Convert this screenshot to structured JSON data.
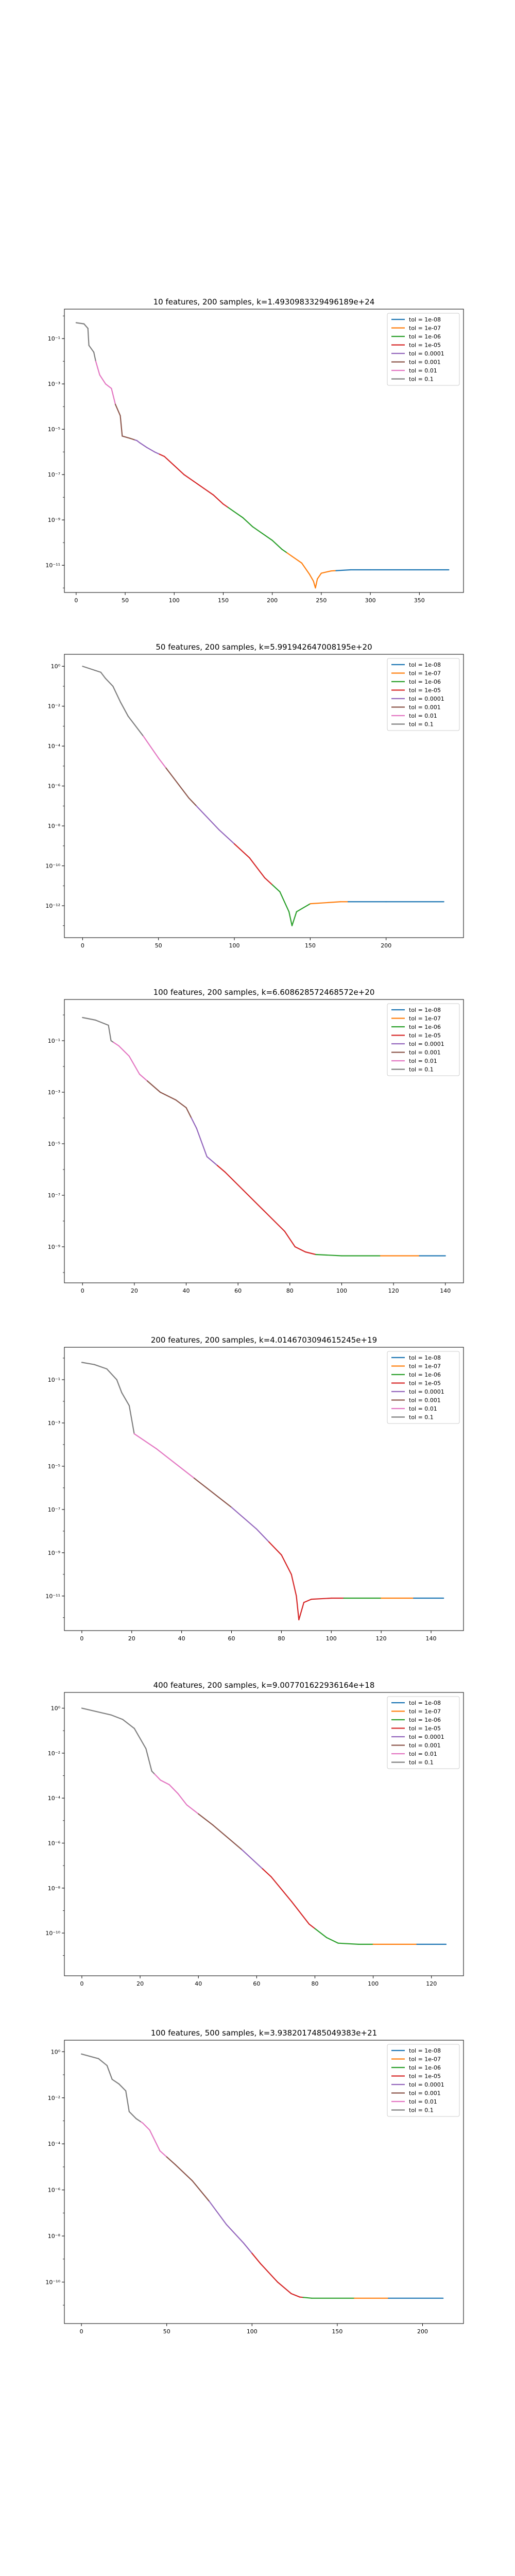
{
  "figure": {
    "series_names": [
      "tol = 1e-08",
      "tol = 1e-07",
      "tol = 1e-06",
      "tol = 1e-05",
      "tol = 0.0001",
      "tol = 0.001",
      "tol = 0.01",
      "tol = 0.1"
    ],
    "series_colors": [
      "#1f77b4",
      "#ff7f0e",
      "#2ca02c",
      "#d62728",
      "#9467bd",
      "#8c564b",
      "#e377c2",
      "#7f7f7f"
    ],
    "legend_position": "top-right",
    "yscale": "log"
  },
  "chart_data": [
    {
      "type": "line",
      "title": "10 features, 200 samples, k=1.4930983329496189e+24",
      "xlim": [
        -12,
        395
      ],
      "xticks": [
        0,
        50,
        100,
        150,
        200,
        250,
        300,
        350
      ],
      "ylog": [
        -12.2,
        0.3
      ],
      "yticks": [
        -1,
        -3,
        -5,
        -7,
        -9,
        -11
      ],
      "curve": [
        [
          0,
          -0.3
        ],
        [
          8,
          -0.35
        ],
        [
          12,
          -0.55
        ],
        [
          13,
          -1.3
        ],
        [
          18,
          -1.6
        ],
        [
          20,
          -2.0
        ],
        [
          22,
          -2.3
        ],
        [
          24,
          -2.6
        ],
        [
          30,
          -3.0
        ],
        [
          36,
          -3.2
        ],
        [
          40,
          -3.9
        ],
        [
          45,
          -4.4
        ],
        [
          47,
          -5.3
        ],
        [
          55,
          -5.4
        ],
        [
          62,
          -5.5
        ],
        [
          65,
          -5.6
        ],
        [
          72,
          -5.8
        ],
        [
          80,
          -6.0
        ],
        [
          90,
          -6.2
        ],
        [
          100,
          -6.6
        ],
        [
          110,
          -7.0
        ],
        [
          120,
          -7.3
        ],
        [
          130,
          -7.6
        ],
        [
          140,
          -7.9
        ],
        [
          150,
          -8.3
        ],
        [
          160,
          -8.6
        ],
        [
          170,
          -8.9
        ],
        [
          180,
          -9.3
        ],
        [
          190,
          -9.6
        ],
        [
          200,
          -9.9
        ],
        [
          210,
          -10.3
        ],
        [
          220,
          -10.6
        ],
        [
          230,
          -10.9
        ],
        [
          238,
          -11.4
        ],
        [
          242,
          -11.7
        ],
        [
          244,
          -12.0
        ],
        [
          246,
          -11.6
        ],
        [
          250,
          -11.35
        ],
        [
          260,
          -11.25
        ],
        [
          280,
          -11.2
        ],
        [
          300,
          -11.2
        ],
        [
          340,
          -11.2
        ],
        [
          380,
          -11.2
        ]
      ],
      "color_breaks": [
        [
          0,
          7
        ],
        [
          20,
          6
        ],
        [
          40,
          5
        ],
        [
          60,
          4
        ],
        [
          85,
          3
        ],
        [
          155,
          2
        ],
        [
          215,
          1
        ],
        [
          265,
          0
        ]
      ]
    },
    {
      "type": "line",
      "title": "50 features, 200 samples, k=5.991942647008195e+20",
      "xlim": [
        -12,
        251
      ],
      "xticks": [
        0,
        50,
        100,
        150,
        200
      ],
      "ylog": [
        -13.6,
        0.6
      ],
      "yticks": [
        0,
        -2,
        -4,
        -6,
        -8,
        -10,
        -12
      ],
      "curve": [
        [
          0,
          0.0
        ],
        [
          8,
          -0.2
        ],
        [
          12,
          -0.3
        ],
        [
          15,
          -0.6
        ],
        [
          20,
          -1.0
        ],
        [
          25,
          -1.8
        ],
        [
          30,
          -2.5
        ],
        [
          40,
          -3.5
        ],
        [
          50,
          -4.6
        ],
        [
          60,
          -5.6
        ],
        [
          70,
          -6.6
        ],
        [
          80,
          -7.4
        ],
        [
          90,
          -8.2
        ],
        [
          100,
          -8.9
        ],
        [
          110,
          -9.6
        ],
        [
          120,
          -10.6
        ],
        [
          130,
          -11.3
        ],
        [
          136,
          -12.3
        ],
        [
          138,
          -13.0
        ],
        [
          141,
          -12.3
        ],
        [
          150,
          -11.9
        ],
        [
          170,
          -11.8
        ],
        [
          200,
          -11.8
        ],
        [
          238,
          -11.8
        ]
      ],
      "color_breaks": [
        [
          0,
          7
        ],
        [
          40,
          6
        ],
        [
          55,
          5
        ],
        [
          75,
          4
        ],
        [
          100,
          3
        ],
        [
          125,
          2
        ],
        [
          150,
          1
        ],
        [
          175,
          0
        ]
      ]
    },
    {
      "type": "line",
      "title": "100 features, 200 samples, k=6.608628572468572e+20",
      "xlim": [
        -7,
        147
      ],
      "xticks": [
        0,
        20,
        40,
        60,
        80,
        100,
        120,
        140
      ],
      "ylog": [
        -10.4,
        0.6
      ],
      "yticks": [
        -1,
        -3,
        -5,
        -7,
        -9
      ],
      "curve": [
        [
          0,
          -0.1
        ],
        [
          5,
          -0.2
        ],
        [
          10,
          -0.4
        ],
        [
          11,
          -1.0
        ],
        [
          14,
          -1.2
        ],
        [
          18,
          -1.6
        ],
        [
          22,
          -2.3
        ],
        [
          30,
          -3.0
        ],
        [
          36,
          -3.3
        ],
        [
          40,
          -3.6
        ],
        [
          44,
          -4.4
        ],
        [
          48,
          -5.5
        ],
        [
          55,
          -6.1
        ],
        [
          62,
          -6.8
        ],
        [
          70,
          -7.6
        ],
        [
          78,
          -8.4
        ],
        [
          82,
          -9.0
        ],
        [
          86,
          -9.2
        ],
        [
          90,
          -9.3
        ],
        [
          100,
          -9.35
        ],
        [
          140,
          -9.35
        ]
      ],
      "color_breaks": [
        [
          0,
          7
        ],
        [
          12,
          6
        ],
        [
          25,
          5
        ],
        [
          42,
          4
        ],
        [
          52,
          3
        ],
        [
          90,
          2
        ],
        [
          115,
          1
        ],
        [
          130,
          0
        ]
      ]
    },
    {
      "type": "line",
      "title": "200 features, 200 samples, k=4.0146703094615245e+19",
      "xlim": [
        -7,
        153
      ],
      "xticks": [
        0,
        20,
        40,
        60,
        80,
        100,
        120,
        140
      ],
      "ylog": [
        -12.6,
        0.5
      ],
      "yticks": [
        -1,
        -3,
        -5,
        -7,
        -9,
        -11
      ],
      "curve": [
        [
          0,
          -0.2
        ],
        [
          5,
          -0.3
        ],
        [
          10,
          -0.5
        ],
        [
          14,
          -1.0
        ],
        [
          16,
          -1.6
        ],
        [
          19,
          -2.2
        ],
        [
          21,
          -3.5
        ],
        [
          30,
          -4.2
        ],
        [
          40,
          -5.1
        ],
        [
          50,
          -6.0
        ],
        [
          60,
          -6.9
        ],
        [
          70,
          -7.9
        ],
        [
          80,
          -9.1
        ],
        [
          84,
          -10.0
        ],
        [
          86,
          -11.0
        ],
        [
          87,
          -12.1
        ],
        [
          89,
          -11.3
        ],
        [
          92,
          -11.15
        ],
        [
          100,
          -11.1
        ],
        [
          145,
          -11.1
        ]
      ],
      "color_breaks": [
        [
          0,
          7
        ],
        [
          21,
          6
        ],
        [
          45,
          5
        ],
        [
          60,
          4
        ],
        [
          75,
          3
        ],
        [
          105,
          2
        ],
        [
          120,
          1
        ],
        [
          133,
          0
        ]
      ]
    },
    {
      "type": "line",
      "title": "400 features, 200 samples, k=9.007701622936164e+18",
      "xlim": [
        -6,
        131
      ],
      "xticks": [
        0,
        20,
        40,
        60,
        80,
        100,
        120
      ],
      "ylog": [
        -11.9,
        0.7
      ],
      "yticks": [
        0,
        -2,
        -4,
        -6,
        -8,
        -10
      ],
      "curve": [
        [
          0,
          0.0
        ],
        [
          10,
          -0.3
        ],
        [
          14,
          -0.5
        ],
        [
          18,
          -0.9
        ],
        [
          22,
          -1.8
        ],
        [
          24,
          -2.8
        ],
        [
          27,
          -3.2
        ],
        [
          30,
          -3.4
        ],
        [
          33,
          -3.8
        ],
        [
          36,
          -4.3
        ],
        [
          45,
          -5.2
        ],
        [
          55,
          -6.3
        ],
        [
          65,
          -7.5
        ],
        [
          72,
          -8.6
        ],
        [
          78,
          -9.6
        ],
        [
          84,
          -10.2
        ],
        [
          88,
          -10.45
        ],
        [
          95,
          -10.5
        ],
        [
          125,
          -10.5
        ]
      ],
      "color_breaks": [
        [
          0,
          7
        ],
        [
          25,
          6
        ],
        [
          40,
          5
        ],
        [
          55,
          4
        ],
        [
          62,
          3
        ],
        [
          80,
          2
        ],
        [
          100,
          1
        ],
        [
          115,
          0
        ]
      ]
    },
    {
      "type": "line",
      "title": "100 features, 500 samples, k=3.9382017485049383e+21",
      "xlim": [
        -10,
        224
      ],
      "xticks": [
        0,
        50,
        100,
        150,
        200
      ],
      "ylog": [
        -11.8,
        0.5
      ],
      "yticks": [
        0,
        -2,
        -4,
        -6,
        -8,
        -10
      ],
      "curve": [
        [
          0,
          -0.1
        ],
        [
          10,
          -0.3
        ],
        [
          15,
          -0.6
        ],
        [
          18,
          -1.2
        ],
        [
          22,
          -1.4
        ],
        [
          26,
          -1.7
        ],
        [
          28,
          -2.6
        ],
        [
          32,
          -2.9
        ],
        [
          36,
          -3.1
        ],
        [
          40,
          -3.4
        ],
        [
          46,
          -4.3
        ],
        [
          55,
          -4.9
        ],
        [
          65,
          -5.6
        ],
        [
          75,
          -6.5
        ],
        [
          85,
          -7.5
        ],
        [
          95,
          -8.3
        ],
        [
          105,
          -9.2
        ],
        [
          115,
          -10.0
        ],
        [
          123,
          -10.5
        ],
        [
          128,
          -10.65
        ],
        [
          135,
          -10.7
        ],
        [
          212,
          -10.7
        ]
      ],
      "color_breaks": [
        [
          0,
          7
        ],
        [
          35,
          6
        ],
        [
          50,
          5
        ],
        [
          75,
          4
        ],
        [
          100,
          3
        ],
        [
          130,
          2
        ],
        [
          160,
          1
        ],
        [
          180,
          0
        ]
      ]
    }
  ]
}
